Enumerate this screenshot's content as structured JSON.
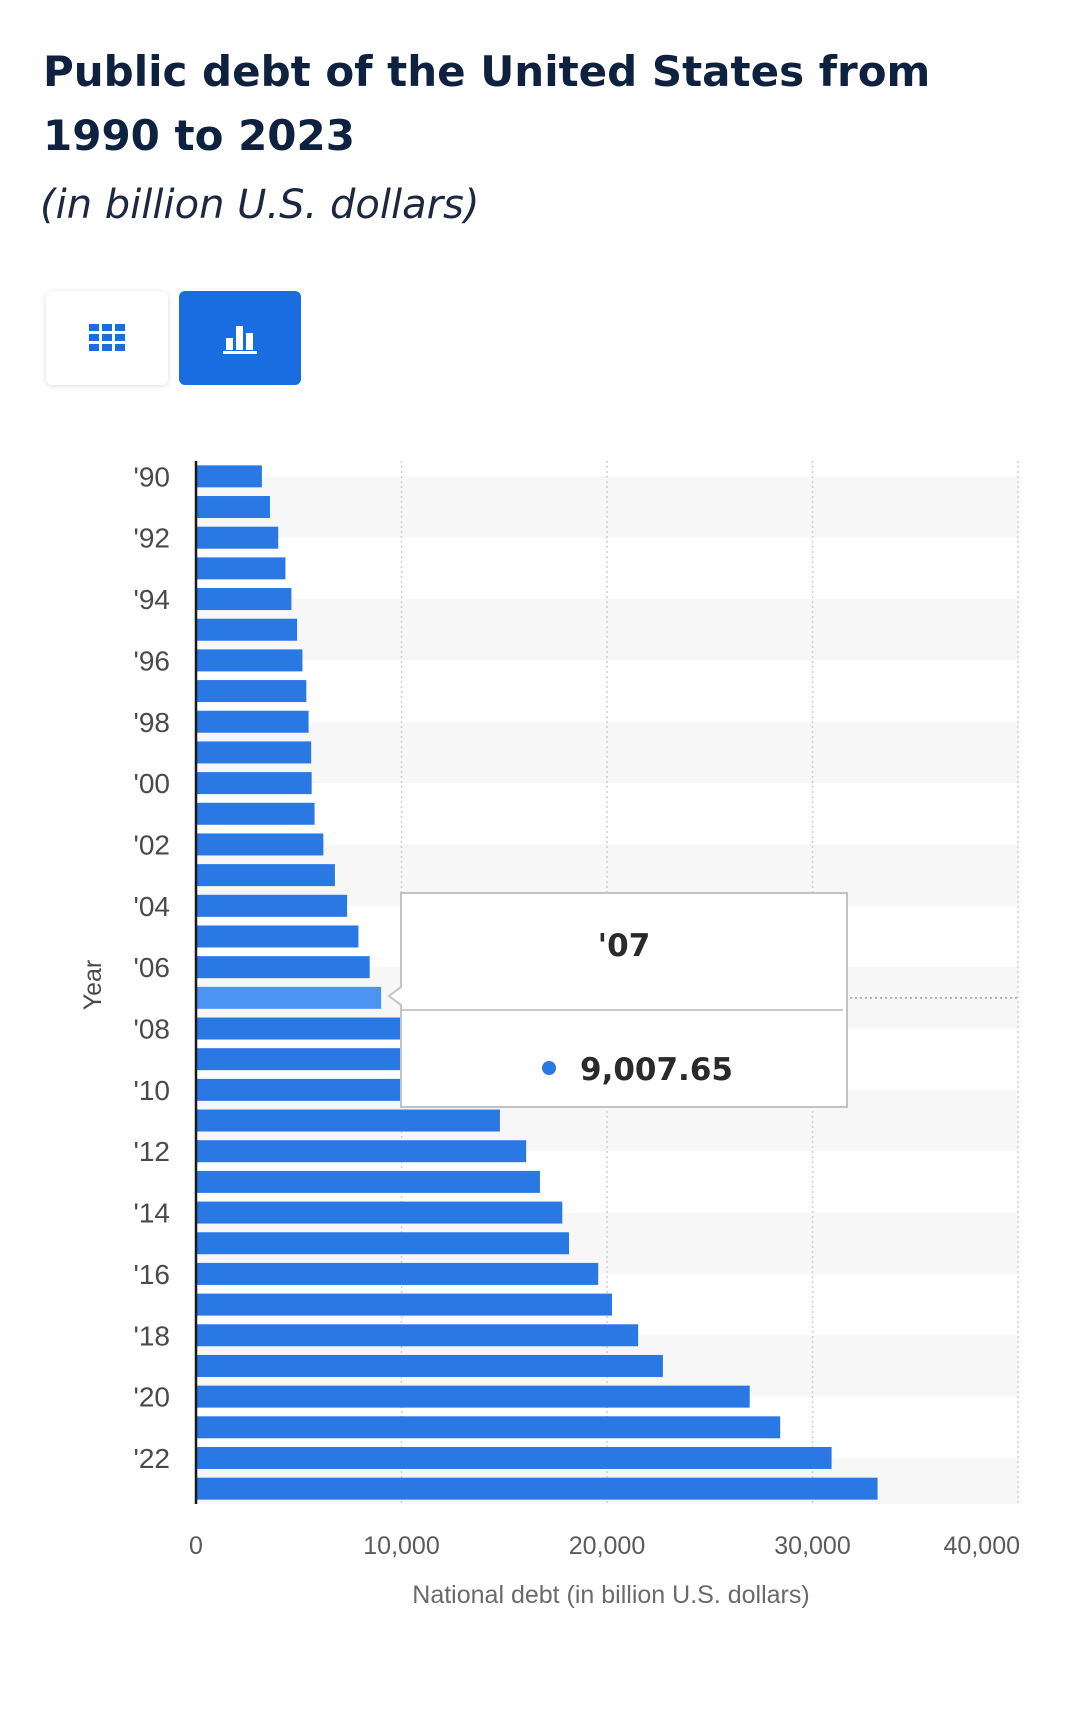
{
  "header": {
    "title": "Public debt of the United States from 1990 to 2023",
    "subtitle": "(in billion U.S. dollars)"
  },
  "view_toggle": {
    "table_icon": "grid-table-icon",
    "chart_icon": "bar-chart-icon",
    "active": "chart"
  },
  "colors": {
    "bar": "#2a78e4",
    "bar_highlight": "#4d93f2",
    "title": "#0e2240",
    "toggle_active": "#1a6de0"
  },
  "chart_data": {
    "type": "bar",
    "orientation": "horizontal",
    "categories": [
      "'90",
      "'91",
      "'92",
      "'93",
      "'94",
      "'95",
      "'96",
      "'97",
      "'98",
      "'99",
      "'00",
      "'01",
      "'02",
      "'03",
      "'04",
      "'05",
      "'06",
      "'07",
      "'08",
      "'09",
      "'10",
      "'11",
      "'12",
      "'13",
      "'14",
      "'15",
      "'16",
      "'17",
      "'18",
      "'19",
      "'20",
      "'21",
      "'22",
      "'23"
    ],
    "y_tick_labels": [
      "'90",
      "'92",
      "'94",
      "'96",
      "'98",
      "'00",
      "'02",
      "'04",
      "'06",
      "'08",
      "'10",
      "'12",
      "'14",
      "'16",
      "'18",
      "'20",
      "'22"
    ],
    "values": [
      3206,
      3598,
      4001,
      4351,
      4643,
      4920,
      5181,
      5369,
      5478,
      5605,
      5628,
      5769,
      6198,
      6760,
      7354,
      7905,
      8451,
      9007.65,
      10025,
      11910,
      13562,
      14790,
      16066,
      16738,
      17824,
      18151,
      19573,
      20245,
      21516,
      22719,
      26945,
      28428,
      30929,
      33167
    ],
    "xlim": [
      0,
      40000
    ],
    "x_ticks": [
      0,
      10000,
      20000,
      30000,
      40000
    ],
    "x_tick_labels": [
      "0",
      "10,000",
      "20,000",
      "30,000",
      "40,000"
    ],
    "xlabel": "National debt (in billion U.S. dollars)",
    "ylabel": "Year",
    "grid": true,
    "tooltip": {
      "category": "'07",
      "value_label": "9,007.65"
    }
  }
}
